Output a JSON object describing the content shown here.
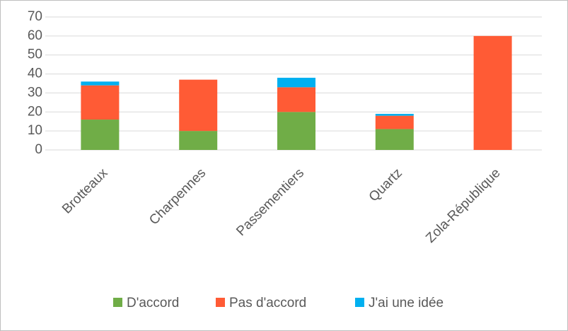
{
  "chart_data": {
    "type": "stacked_bar",
    "categories": [
      "Brotteaux",
      "Charpennes",
      "Passementiers",
      "Quartz",
      "Zola-République"
    ],
    "series": [
      {
        "name": "D'accord",
        "color": "#70ad47",
        "values": [
          16,
          10,
          20,
          11,
          0
        ]
      },
      {
        "name": "Pas d'accord",
        "color": "#ff5b35",
        "values": [
          18,
          27,
          13,
          7,
          60
        ]
      },
      {
        "name": "J'ai une idée",
        "color": "#00b0f0",
        "values": [
          2,
          0,
          5,
          1,
          0
        ]
      }
    ],
    "ylim": [
      0,
      70
    ],
    "yticks": [
      0,
      10,
      20,
      30,
      40,
      50,
      60,
      70
    ],
    "grid": true,
    "legend": "bottom"
  }
}
